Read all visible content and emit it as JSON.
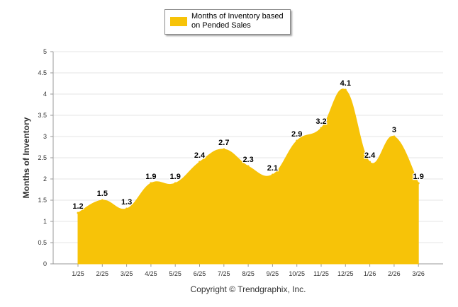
{
  "colors": {
    "series": "#F7C308",
    "grid": "#E5E5E5",
    "axis": "#333333",
    "text": "#000000"
  },
  "chart_data": {
    "type": "area",
    "title": "",
    "xlabel": "",
    "ylabel": "Months of Inventory",
    "ylim": [
      0,
      5
    ],
    "yticks": [
      "0",
      "0.5",
      "1",
      "1.5",
      "2",
      "2.5",
      "3",
      "3.5",
      "4",
      "4.5",
      "5"
    ],
    "categories": [
      "1/25",
      "2/25",
      "3/25",
      "4/25",
      "5/25",
      "6/25",
      "7/25",
      "8/25",
      "9/25",
      "10/25",
      "11/25",
      "12/25",
      "1/26",
      "2/26",
      "3/26"
    ],
    "series": [
      {
        "name": "Months of Inventory based on Pended Sales",
        "values": [
          1.2,
          1.5,
          1.3,
          1.9,
          1.9,
          2.4,
          2.7,
          2.3,
          2.1,
          2.9,
          3.2,
          4.1,
          2.4,
          3,
          1.9
        ],
        "labels": [
          "1.2",
          "1.5",
          "1.3",
          "1.9",
          "1.9",
          "2.4",
          "2.7",
          "2.3",
          "2.1",
          "2.9",
          "3.2",
          "4.1",
          "2.4",
          "3",
          "1.9"
        ]
      }
    ],
    "legend": {
      "position": "top-center",
      "label": "Months of Inventory based on Pended Sales"
    },
    "grid": true
  },
  "footer": {
    "copyright": "Copyright © Trendgraphix, Inc."
  }
}
